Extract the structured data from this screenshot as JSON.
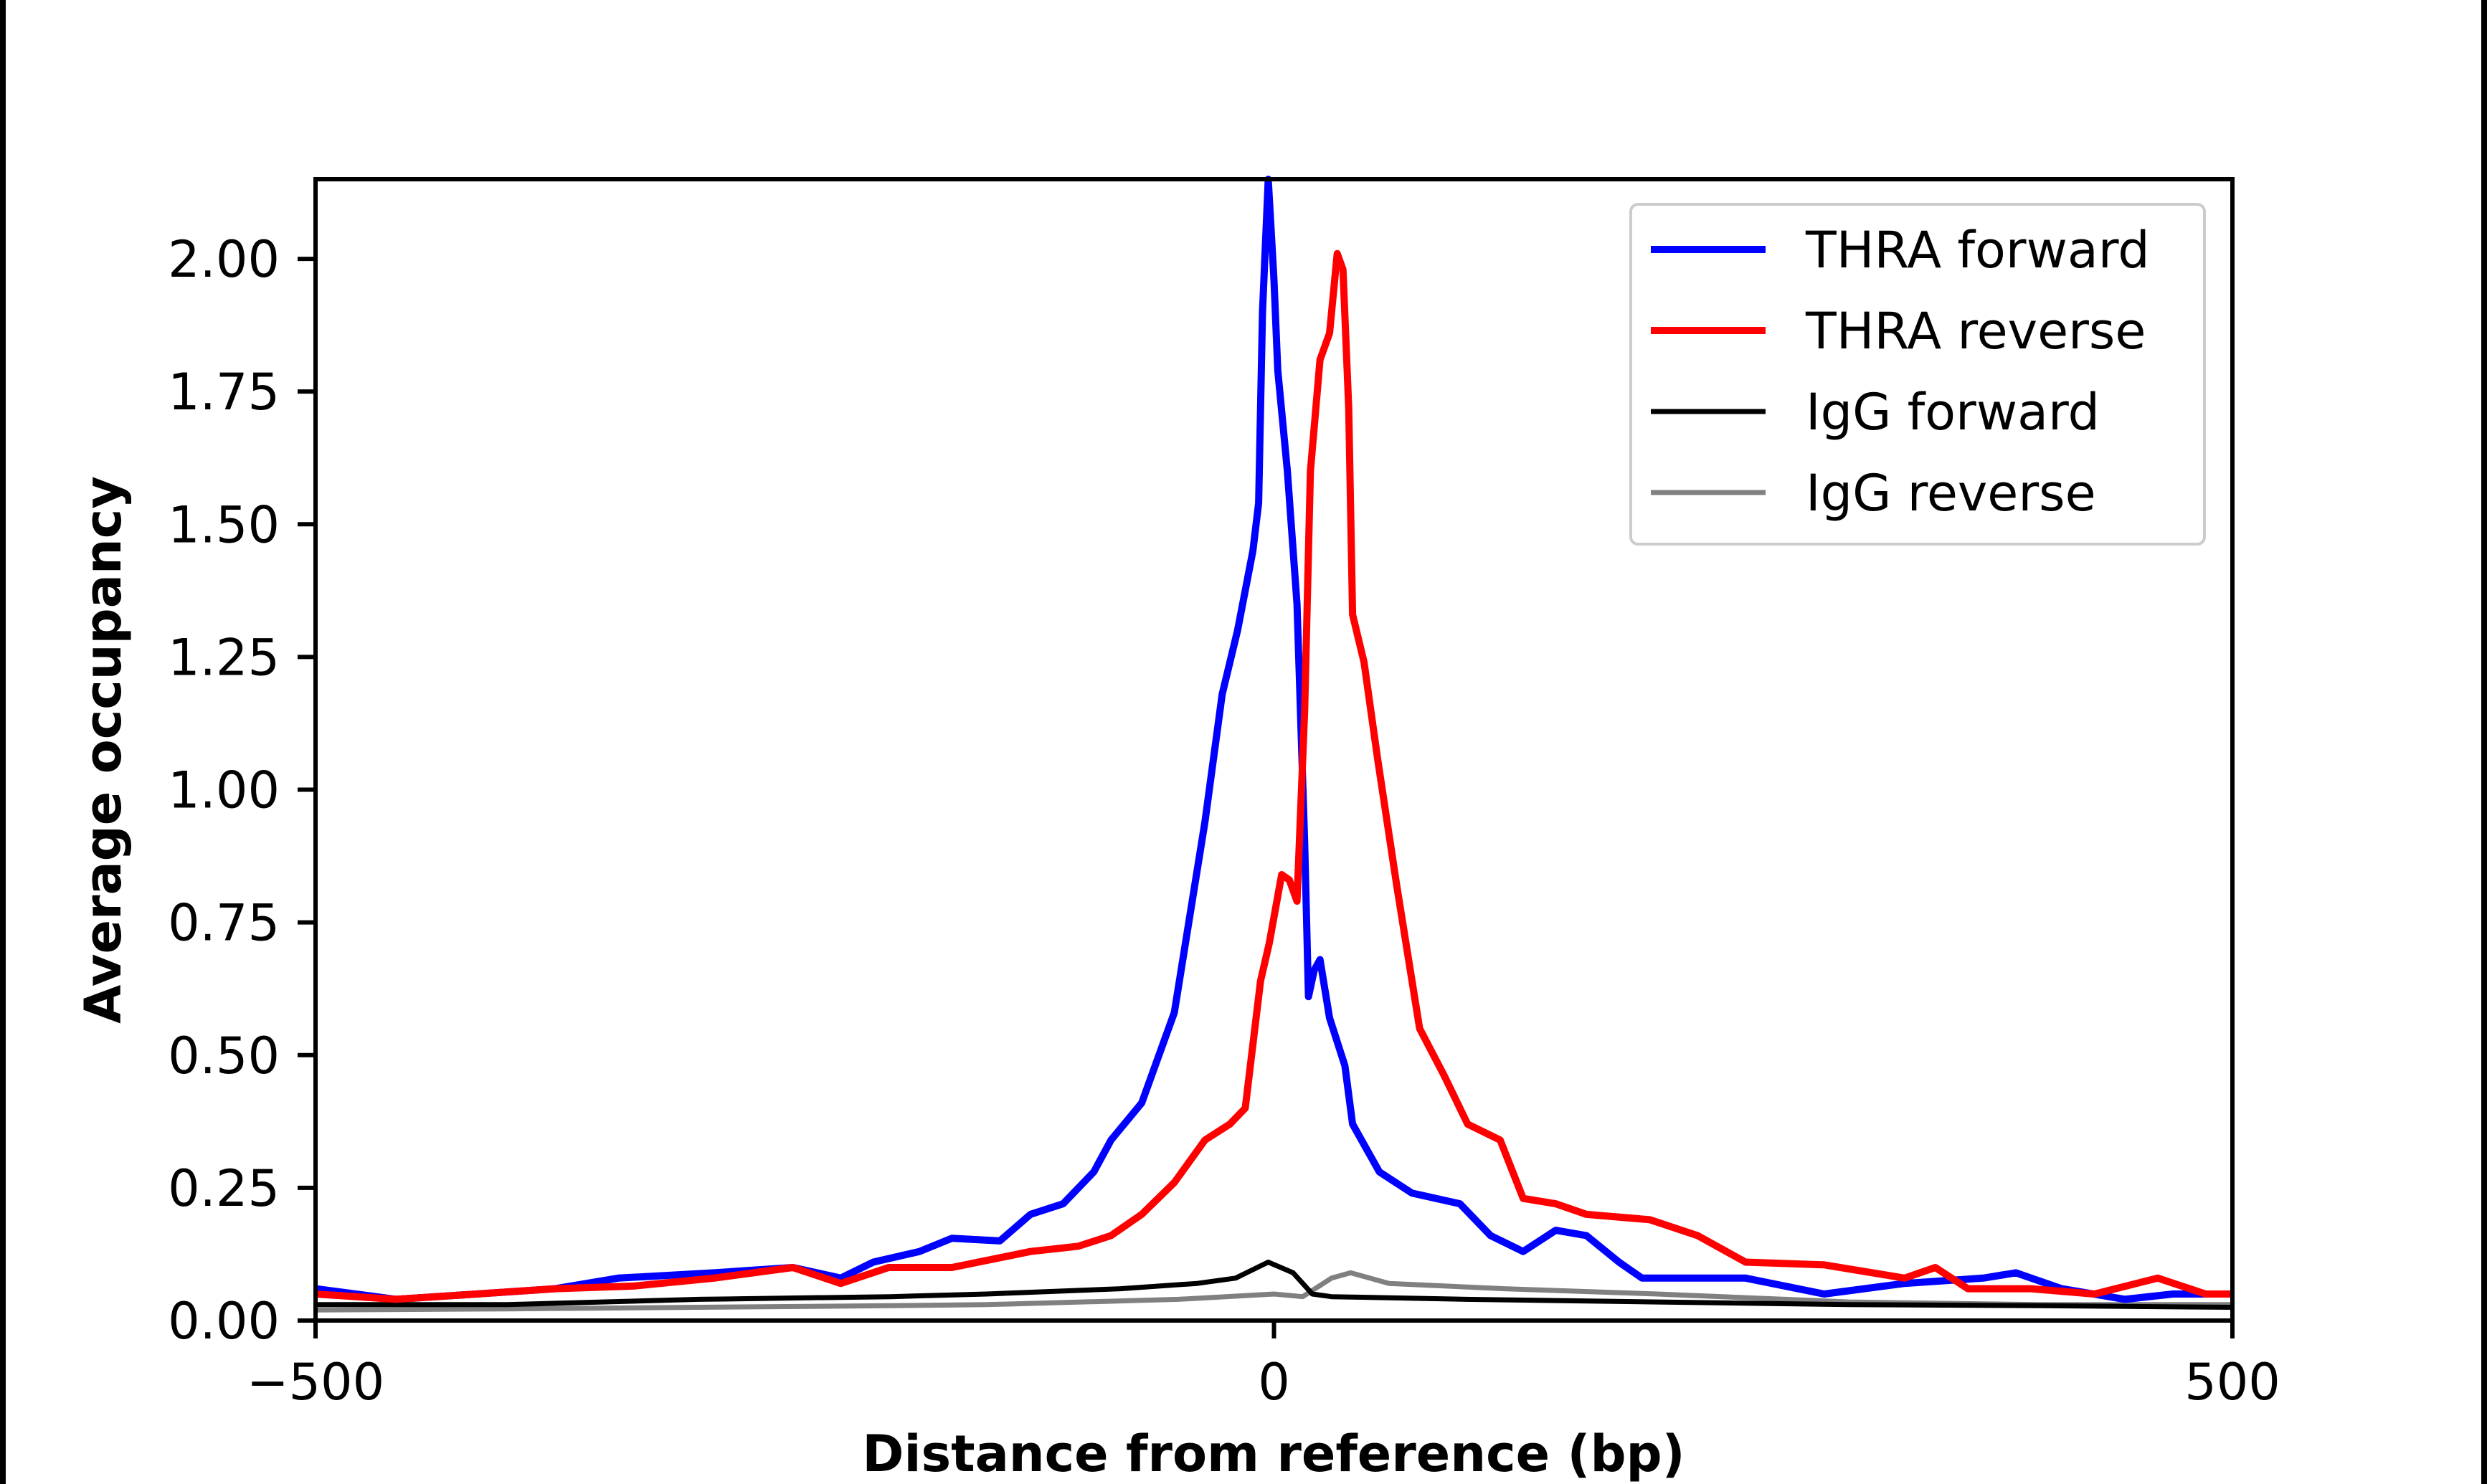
{
  "chart_data": {
    "type": "line",
    "title": "",
    "xlabel": "Distance from reference (bp)",
    "ylabel": "Average occupancy",
    "xlim": [
      -500,
      500
    ],
    "ylim": [
      0,
      2.15
    ],
    "xticks": [
      -500,
      0,
      500
    ],
    "xtick_labels": [
      "−500",
      "0",
      "500"
    ],
    "yticks": [
      0,
      0.25,
      0.5,
      0.75,
      1.0,
      1.25,
      1.5,
      1.75,
      2.0
    ],
    "ytick_labels": [
      "0.00",
      "0.25",
      "0.50",
      "0.75",
      "1.00",
      "1.25",
      "1.50",
      "1.75",
      "2.00"
    ],
    "grid": false,
    "legend_position": "top-right",
    "series": [
      {
        "name": "THRA forward",
        "color": "#0000ff",
        "x": [
          -500,
          -458,
          -416,
          -375,
          -342,
          -292,
          -251,
          -226,
          -209,
          -185,
          -168,
          -143,
          -127,
          -110,
          -94,
          -85,
          -69,
          -52,
          -44,
          -36,
          -27,
          -19,
          -11,
          -8,
          -6,
          -3,
          0,
          2,
          7,
          12,
          16,
          18,
          21,
          24,
          29,
          37,
          41,
          55,
          72,
          97,
          113,
          130,
          147,
          163,
          180,
          192,
          246,
          287,
          329,
          370,
          387,
          411,
          444,
          469,
          500
        ],
        "y": [
          0.06,
          0.04,
          0.05,
          0.06,
          0.08,
          0.09,
          0.1,
          0.08,
          0.11,
          0.13,
          0.155,
          0.15,
          0.2,
          0.22,
          0.28,
          0.34,
          0.41,
          0.58,
          0.76,
          0.94,
          1.18,
          1.3,
          1.45,
          1.54,
          1.9,
          2.15,
          1.96,
          1.79,
          1.6,
          1.35,
          0.9,
          0.61,
          0.66,
          0.68,
          0.57,
          0.48,
          0.37,
          0.28,
          0.24,
          0.22,
          0.16,
          0.13,
          0.17,
          0.16,
          0.11,
          0.08,
          0.08,
          0.05,
          0.07,
          0.08,
          0.09,
          0.06,
          0.04,
          0.05,
          0.05
        ]
      },
      {
        "name": "THRA reverse",
        "color": "#ff0000",
        "x": [
          -500,
          -458,
          -416,
          -375,
          -334,
          -292,
          -251,
          -226,
          -201,
          -168,
          -127,
          -102,
          -85,
          -69,
          -52,
          -36,
          -23,
          -15,
          -7,
          -2.5,
          4,
          8,
          12,
          16,
          19,
          24,
          29,
          33,
          36,
          39,
          41,
          47,
          54,
          64,
          76,
          89,
          101,
          118,
          130,
          147,
          163,
          196,
          221,
          246,
          287,
          329,
          345,
          362,
          395,
          428,
          461,
          486,
          500
        ],
        "y": [
          0.05,
          0.04,
          0.05,
          0.06,
          0.065,
          0.08,
          0.1,
          0.07,
          0.1,
          0.1,
          0.13,
          0.14,
          0.16,
          0.2,
          0.26,
          0.34,
          0.37,
          0.4,
          0.64,
          0.71,
          0.84,
          0.83,
          0.79,
          1.15,
          1.6,
          1.81,
          1.86,
          2.01,
          1.98,
          1.72,
          1.33,
          1.24,
          1.06,
          0.82,
          0.55,
          0.46,
          0.37,
          0.34,
          0.23,
          0.22,
          0.2,
          0.19,
          0.16,
          0.11,
          0.105,
          0.08,
          0.1,
          0.06,
          0.06,
          0.05,
          0.08,
          0.05,
          0.05
        ]
      },
      {
        "name": "IgG forward",
        "color": "#000000",
        "x": [
          -500,
          -400,
          -300,
          -200,
          -150,
          -80,
          -40,
          -20,
          -3,
          10,
          20,
          30,
          100,
          200,
          300,
          400,
          500
        ],
        "y": [
          0.03,
          0.03,
          0.04,
          0.045,
          0.05,
          0.06,
          0.07,
          0.08,
          0.11,
          0.09,
          0.05,
          0.045,
          0.04,
          0.035,
          0.03,
          0.028,
          0.025
        ]
      },
      {
        "name": "IgG reverse",
        "color": "#808080",
        "x": [
          -500,
          -400,
          -300,
          -200,
          -150,
          -50,
          0,
          15,
          30,
          40,
          60,
          120,
          200,
          300,
          400,
          500
        ],
        "y": [
          0.02,
          0.022,
          0.025,
          0.028,
          0.03,
          0.04,
          0.05,
          0.045,
          0.08,
          0.09,
          0.07,
          0.06,
          0.05,
          0.035,
          0.03,
          0.03
        ]
      }
    ]
  }
}
